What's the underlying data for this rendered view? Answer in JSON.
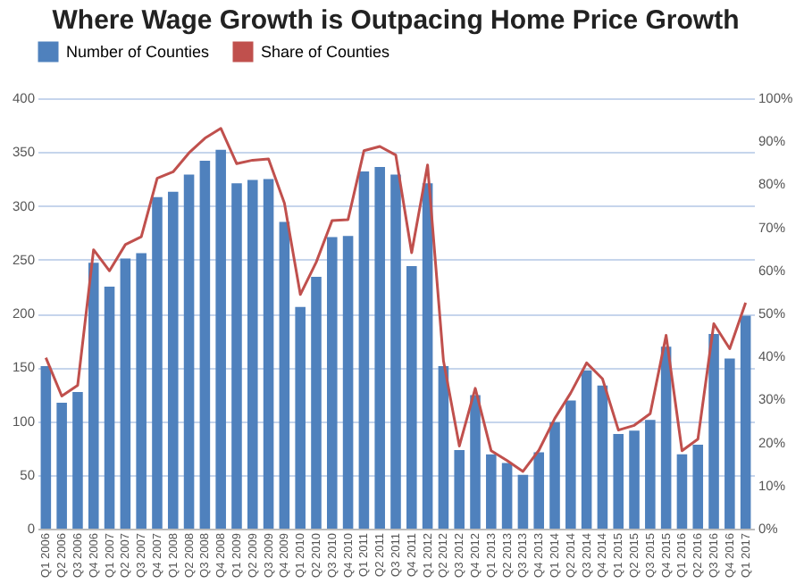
{
  "chart_data": {
    "type": "bar",
    "title": "Where Wage Growth is Outpacing Home Price Growth",
    "categories": [
      "Q1 2006",
      "Q2 2006",
      "Q3 2006",
      "Q4 2006",
      "Q1 2007",
      "Q2 2007",
      "Q3 2007",
      "Q4 2007",
      "Q1 2008",
      "Q2 2008",
      "Q3 2008",
      "Q4 2008",
      "Q1 2009",
      "Q2 2009",
      "Q3 2009",
      "Q4 2009",
      "Q1 2010",
      "Q2 2010",
      "Q3 2010",
      "Q4 2010",
      "Q1 2011",
      "Q2 2011",
      "Q3 2011",
      "Q4 2011",
      "Q1 2012",
      "Q2 2012",
      "Q3 2012",
      "Q4 2012",
      "Q1 2013",
      "Q2 2013",
      "Q3 2013",
      "Q4 2013",
      "Q1 2014",
      "Q2 2014",
      "Q3 2014",
      "Q4 2014",
      "Q1 2015",
      "Q2 2015",
      "Q3 2015",
      "Q4 2015",
      "Q1 2016",
      "Q2 2016",
      "Q3 2016",
      "Q4 2016",
      "Q1 2017"
    ],
    "series": [
      {
        "name": "Number of Counties",
        "color": "#4f81bd",
        "values": [
          151,
          117,
          127,
          247,
          225,
          251,
          256,
          308,
          313,
          329,
          342,
          352,
          321,
          324,
          325,
          285,
          206,
          234,
          271,
          272,
          332,
          336,
          329,
          244,
          321,
          151,
          73,
          124,
          69,
          61,
          50,
          71,
          99,
          119,
          147,
          133,
          88,
          91,
          101,
          169,
          69,
          78,
          181,
          158,
          198
        ]
      },
      {
        "name": "Share of Counties",
        "type": "line",
        "axis": "y2",
        "color": "#c0504d",
        "values": [
          39.7,
          30.8,
          33.3,
          64.8,
          59.9,
          66,
          67.8,
          81.4,
          82.9,
          87.3,
          90.7,
          93,
          84.8,
          85.6,
          85.9,
          75.6,
          54.4,
          61.9,
          71.6,
          71.8,
          87.8,
          88.8,
          86.8,
          64.1,
          84.5,
          39,
          19.2,
          32.6,
          18.1,
          15.8,
          13.3,
          18.2,
          25.6,
          31.5,
          38.5,
          34.8,
          22.9,
          24,
          26.7,
          44.9,
          18.1,
          20.8,
          47.6,
          41.8,
          52.5
        ]
      }
    ],
    "ylim": [
      0,
      400
    ],
    "yticks": [
      0,
      50,
      100,
      150,
      200,
      250,
      300,
      350,
      400
    ],
    "y2lim": [
      0,
      100
    ],
    "y2ticks": [
      {
        "value": 0,
        "label": "0%"
      },
      {
        "value": 10,
        "label": "10%"
      },
      {
        "value": 20,
        "label": "20%"
      },
      {
        "value": 30,
        "label": "30%"
      },
      {
        "value": 40,
        "label": "40%"
      },
      {
        "value": 50,
        "label": "50%"
      },
      {
        "value": 60,
        "label": "60%"
      },
      {
        "value": 70,
        "label": "70%"
      },
      {
        "value": 80,
        "label": "80%"
      },
      {
        "value": 90,
        "label": "90%"
      },
      {
        "value": 100,
        "label": "100%"
      }
    ],
    "grid": "y",
    "legend": "top",
    "line_style": "solid",
    "marker": "none"
  }
}
